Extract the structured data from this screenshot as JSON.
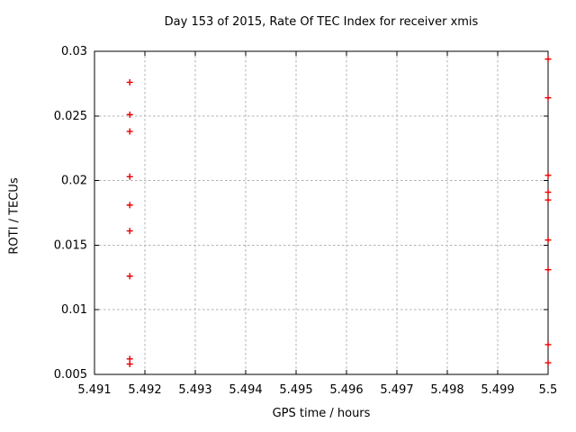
{
  "chart_data": {
    "type": "scatter",
    "title": "Day 153 of 2015, Rate Of TEC Index for receiver xmis",
    "xlabel": "GPS time / hours",
    "ylabel": "ROTI / TECUs",
    "xlim": [
      5.491,
      5.5
    ],
    "ylim": [
      0.005,
      0.03
    ],
    "x_ticks": [
      5.491,
      5.492,
      5.493,
      5.494,
      5.495,
      5.496,
      5.497,
      5.498,
      5.499,
      5.5
    ],
    "x_tick_labels": [
      "5.491",
      "5.492",
      "5.493",
      "5.494",
      "5.495",
      "5.496",
      "5.497",
      "5.498",
      "5.499",
      "5.5"
    ],
    "y_ticks": [
      0.005,
      0.01,
      0.015,
      0.02,
      0.025,
      0.03
    ],
    "y_tick_labels": [
      "0.005",
      "0.01",
      "0.015",
      "0.02",
      "0.025",
      "0.03"
    ],
    "grid": true,
    "legend": "none",
    "marker": "plus",
    "marker_color": "#e60000",
    "grid_color": "#b0b0b0",
    "border_color": "#000000",
    "series": [
      {
        "name": "roti",
        "points": [
          [
            5.4917,
            0.0276
          ],
          [
            5.4917,
            0.0251
          ],
          [
            5.4917,
            0.0238
          ],
          [
            5.4917,
            0.0203
          ],
          [
            5.4917,
            0.0181
          ],
          [
            5.4917,
            0.0161
          ],
          [
            5.4917,
            0.0126
          ],
          [
            5.4917,
            0.0062
          ],
          [
            5.4917,
            0.0058
          ],
          [
            5.5,
            0.0294
          ],
          [
            5.5,
            0.0264
          ],
          [
            5.5,
            0.0204
          ],
          [
            5.5,
            0.0191
          ],
          [
            5.5,
            0.0185
          ],
          [
            5.5,
            0.0154
          ],
          [
            5.5,
            0.0131
          ],
          [
            5.5,
            0.0073
          ],
          [
            5.5,
            0.0059
          ]
        ]
      }
    ]
  }
}
